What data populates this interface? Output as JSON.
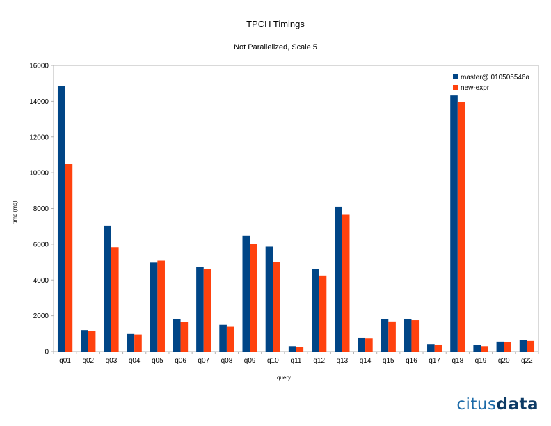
{
  "chart_data": {
    "type": "bar",
    "title": "TPCH Timings",
    "subtitle": "Not Parallelized, Scale 5",
    "xlabel": "query",
    "ylabel": "time (ms)",
    "ylim": [
      0,
      16000
    ],
    "yticks": [
      0,
      2000,
      4000,
      6000,
      8000,
      10000,
      12000,
      14000,
      16000
    ],
    "grid": false,
    "legend_position": "top-right",
    "categories": [
      "q01",
      "q02",
      "q03",
      "q04",
      "q05",
      "q06",
      "q07",
      "q08",
      "q09",
      "q10",
      "q11",
      "q12",
      "q13",
      "q14",
      "q15",
      "q16",
      "q17",
      "q18",
      "q19",
      "q20",
      "q22"
    ],
    "series": [
      {
        "name": "master@ 010505546a",
        "color": "#004586",
        "values": [
          14850,
          1200,
          7050,
          980,
          4970,
          1810,
          4720,
          1490,
          6470,
          5860,
          300,
          4600,
          8100,
          780,
          1800,
          1830,
          420,
          14320,
          350,
          550,
          640
        ]
      },
      {
        "name": "new-expr",
        "color": "#ff420e",
        "values": [
          10500,
          1150,
          5830,
          950,
          5080,
          1640,
          4600,
          1380,
          6000,
          5000,
          260,
          4250,
          7650,
          730,
          1680,
          1750,
          390,
          13950,
          300,
          510,
          590
        ]
      }
    ]
  },
  "logo": {
    "part1": "citus",
    "part2": "data"
  }
}
